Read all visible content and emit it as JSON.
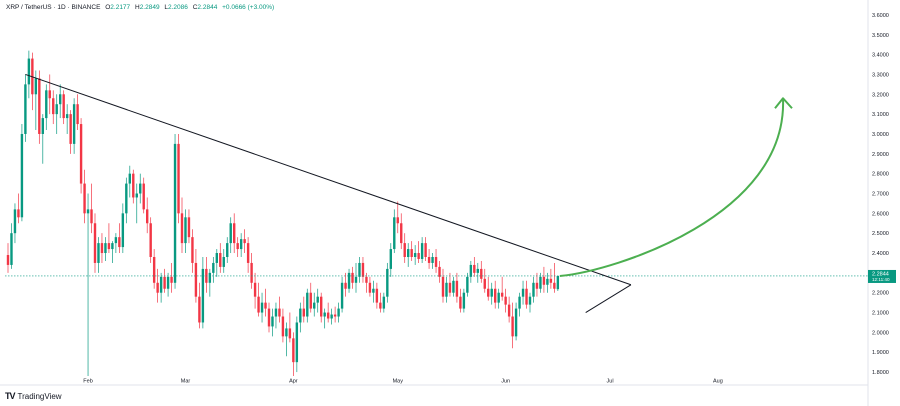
{
  "legend": {
    "symbol": "XRP / TetherUS · 1D · BINANCE",
    "open_label": "O",
    "open": "2.2177",
    "high_label": "H",
    "high": "2.2849",
    "low_label": "L",
    "low": "2.2086",
    "close_label": "C",
    "close": "2.2844",
    "change": "+0.0666 (+3.00%)"
  },
  "chart_data": {
    "type": "candlestick",
    "title": "XRP / TetherUS · 1D · BINANCE",
    "ylim": [
      1.75,
      3.65
    ],
    "y_ticks": [
      "3.6000",
      "3.5000",
      "3.4000",
      "3.3000",
      "3.2000",
      "3.1000",
      "3.0000",
      "2.9000",
      "2.8000",
      "2.7000",
      "2.6000",
      "2.5000",
      "2.4000",
      "2.3000",
      "2.2000",
      "2.1000",
      "2.0000",
      "1.9000",
      "1.8000"
    ],
    "x_ticks": [
      "Feb",
      "Mar",
      "Apr",
      "May",
      "Jun",
      "Jul",
      "Aug"
    ],
    "x_tick_index": [
      23,
      51,
      82,
      112,
      143,
      173,
      204
    ],
    "last_price": "2.2844",
    "last_price_sub": "12:11:40",
    "up_color": "#089981",
    "down_color": "#f23645",
    "candles": [
      [
        2.39,
        2.45,
        2.3,
        2.34
      ],
      [
        2.34,
        2.55,
        2.32,
        2.5
      ],
      [
        2.5,
        2.65,
        2.45,
        2.62
      ],
      [
        2.62,
        2.7,
        2.55,
        2.58
      ],
      [
        2.58,
        3.05,
        2.56,
        3.0
      ],
      [
        3.0,
        3.3,
        2.96,
        3.25
      ],
      [
        3.25,
        3.42,
        3.18,
        3.38
      ],
      [
        3.38,
        3.41,
        3.12,
        3.2
      ],
      [
        3.2,
        3.32,
        3.02,
        3.28
      ],
      [
        3.28,
        3.32,
        2.95,
        3.0
      ],
      [
        3.0,
        3.1,
        2.85,
        3.08
      ],
      [
        3.08,
        3.25,
        3.02,
        3.22
      ],
      [
        3.22,
        3.3,
        3.1,
        3.18
      ],
      [
        3.18,
        3.22,
        3.05,
        3.1
      ],
      [
        3.1,
        3.2,
        3.0,
        3.15
      ],
      [
        3.15,
        3.25,
        3.08,
        3.2
      ],
      [
        3.2,
        3.22,
        3.05,
        3.08
      ],
      [
        3.08,
        3.15,
        3.0,
        3.1
      ],
      [
        3.1,
        3.12,
        2.9,
        2.95
      ],
      [
        2.95,
        3.18,
        2.9,
        3.15
      ],
      [
        3.15,
        3.2,
        3.02,
        3.05
      ],
      [
        3.05,
        3.08,
        2.7,
        2.75
      ],
      [
        2.75,
        2.82,
        2.55,
        2.6
      ],
      [
        2.6,
        2.7,
        1.78,
        2.62
      ],
      [
        2.62,
        2.75,
        2.5,
        2.55
      ],
      [
        2.55,
        2.6,
        2.3,
        2.35
      ],
      [
        2.35,
        2.48,
        2.3,
        2.45
      ],
      [
        2.45,
        2.5,
        2.35,
        2.4
      ],
      [
        2.4,
        2.48,
        2.36,
        2.45
      ],
      [
        2.45,
        2.55,
        2.4,
        2.42
      ],
      [
        2.42,
        2.46,
        2.35,
        2.45
      ],
      [
        2.45,
        2.5,
        2.4,
        2.48
      ],
      [
        2.48,
        2.55,
        2.4,
        2.43
      ],
      [
        2.43,
        2.65,
        2.4,
        2.6
      ],
      [
        2.6,
        2.78,
        2.55,
        2.75
      ],
      [
        2.75,
        2.84,
        2.68,
        2.8
      ],
      [
        2.8,
        2.82,
        2.65,
        2.68
      ],
      [
        2.68,
        2.75,
        2.55,
        2.7
      ],
      [
        2.7,
        2.8,
        2.65,
        2.75
      ],
      [
        2.75,
        2.78,
        2.6,
        2.62
      ],
      [
        2.62,
        2.68,
        2.5,
        2.55
      ],
      [
        2.55,
        2.58,
        2.35,
        2.38
      ],
      [
        2.38,
        2.42,
        2.22,
        2.25
      ],
      [
        2.25,
        2.32,
        2.15,
        2.2
      ],
      [
        2.2,
        2.3,
        2.15,
        2.28
      ],
      [
        2.28,
        2.32,
        2.2,
        2.22
      ],
      [
        2.22,
        2.3,
        2.18,
        2.28
      ],
      [
        2.28,
        2.35,
        2.2,
        2.25
      ],
      [
        2.25,
        3.0,
        2.22,
        2.95
      ],
      [
        2.95,
        3.0,
        2.55,
        2.6
      ],
      [
        2.6,
        2.68,
        2.4,
        2.45
      ],
      [
        2.45,
        2.62,
        2.4,
        2.58
      ],
      [
        2.58,
        2.62,
        2.45,
        2.48
      ],
      [
        2.48,
        2.52,
        2.3,
        2.35
      ],
      [
        2.35,
        2.42,
        2.15,
        2.18
      ],
      [
        2.18,
        2.25,
        2.02,
        2.05
      ],
      [
        2.05,
        2.38,
        2.02,
        2.32
      ],
      [
        2.32,
        2.38,
        2.2,
        2.25
      ],
      [
        2.25,
        2.32,
        2.18,
        2.3
      ],
      [
        2.3,
        2.38,
        2.25,
        2.35
      ],
      [
        2.35,
        2.42,
        2.28,
        2.4
      ],
      [
        2.4,
        2.45,
        2.3,
        2.33
      ],
      [
        2.33,
        2.42,
        2.3,
        2.38
      ],
      [
        2.38,
        2.48,
        2.35,
        2.45
      ],
      [
        2.45,
        2.58,
        2.4,
        2.55
      ],
      [
        2.55,
        2.6,
        2.4,
        2.45
      ],
      [
        2.45,
        2.48,
        2.38,
        2.42
      ],
      [
        2.42,
        2.5,
        2.38,
        2.47
      ],
      [
        2.47,
        2.52,
        2.4,
        2.45
      ],
      [
        2.45,
        2.48,
        2.3,
        2.35
      ],
      [
        2.35,
        2.4,
        2.22,
        2.25
      ],
      [
        2.25,
        2.3,
        2.12,
        2.18
      ],
      [
        2.18,
        2.25,
        2.08,
        2.1
      ],
      [
        2.1,
        2.2,
        2.05,
        2.15
      ],
      [
        2.15,
        2.22,
        2.08,
        2.12
      ],
      [
        2.12,
        2.15,
        2.0,
        2.03
      ],
      [
        2.03,
        2.12,
        1.98,
        2.08
      ],
      [
        2.08,
        2.15,
        2.02,
        2.12
      ],
      [
        2.12,
        2.18,
        2.05,
        2.08
      ],
      [
        2.08,
        2.12,
        1.95,
        1.98
      ],
      [
        1.98,
        2.05,
        1.88,
        2.02
      ],
      [
        2.02,
        2.1,
        1.95,
        1.97
      ],
      [
        1.97,
        2.0,
        1.78,
        1.85
      ],
      [
        1.85,
        2.08,
        1.8,
        2.05
      ],
      [
        2.05,
        2.15,
        2.0,
        2.12
      ],
      [
        2.12,
        2.18,
        2.05,
        2.08
      ],
      [
        2.08,
        2.22,
        2.05,
        2.2
      ],
      [
        2.2,
        2.25,
        2.1,
        2.12
      ],
      [
        2.12,
        2.2,
        2.08,
        2.15
      ],
      [
        2.15,
        2.22,
        2.1,
        2.18
      ],
      [
        2.18,
        2.2,
        2.05,
        2.08
      ],
      [
        2.08,
        2.12,
        2.02,
        2.1
      ],
      [
        2.1,
        2.15,
        2.05,
        2.07
      ],
      [
        2.07,
        2.12,
        2.04,
        2.09
      ],
      [
        2.09,
        2.13,
        2.05,
        2.08
      ],
      [
        2.08,
        2.15,
        2.05,
        2.12
      ],
      [
        2.12,
        2.28,
        2.1,
        2.25
      ],
      [
        2.25,
        2.3,
        2.18,
        2.22
      ],
      [
        2.22,
        2.32,
        2.2,
        2.3
      ],
      [
        2.3,
        2.33,
        2.22,
        2.25
      ],
      [
        2.25,
        2.35,
        2.2,
        2.28
      ],
      [
        2.28,
        2.38,
        2.25,
        2.35
      ],
      [
        2.35,
        2.38,
        2.25,
        2.28
      ],
      [
        2.28,
        2.3,
        2.2,
        2.25
      ],
      [
        2.25,
        2.28,
        2.18,
        2.2
      ],
      [
        2.2,
        2.26,
        2.15,
        2.22
      ],
      [
        2.22,
        2.25,
        2.12,
        2.15
      ],
      [
        2.15,
        2.2,
        2.1,
        2.12
      ],
      [
        2.12,
        2.2,
        2.1,
        2.18
      ],
      [
        2.18,
        2.35,
        2.15,
        2.32
      ],
      [
        2.32,
        2.45,
        2.28,
        2.42
      ],
      [
        2.42,
        2.62,
        2.4,
        2.58
      ],
      [
        2.58,
        2.66,
        2.5,
        2.55
      ],
      [
        2.55,
        2.6,
        2.42,
        2.45
      ],
      [
        2.45,
        2.5,
        2.35,
        2.38
      ],
      [
        2.38,
        2.45,
        2.33,
        2.42
      ],
      [
        2.42,
        2.46,
        2.36,
        2.38
      ],
      [
        2.38,
        2.44,
        2.34,
        2.4
      ],
      [
        2.4,
        2.46,
        2.35,
        2.37
      ],
      [
        2.37,
        2.48,
        2.35,
        2.45
      ],
      [
        2.45,
        2.48,
        2.36,
        2.38
      ],
      [
        2.38,
        2.42,
        2.32,
        2.35
      ],
      [
        2.35,
        2.4,
        2.32,
        2.38
      ],
      [
        2.38,
        2.42,
        2.3,
        2.33
      ],
      [
        2.33,
        2.36,
        2.25,
        2.28
      ],
      [
        2.28,
        2.32,
        2.15,
        2.18
      ],
      [
        2.18,
        2.28,
        2.15,
        2.25
      ],
      [
        2.25,
        2.3,
        2.18,
        2.2
      ],
      [
        2.2,
        2.28,
        2.18,
        2.26
      ],
      [
        2.26,
        2.3,
        2.15,
        2.18
      ],
      [
        2.18,
        2.22,
        2.1,
        2.12
      ],
      [
        2.12,
        2.22,
        2.1,
        2.2
      ],
      [
        2.2,
        2.3,
        2.18,
        2.28
      ],
      [
        2.28,
        2.36,
        2.25,
        2.34
      ],
      [
        2.34,
        2.38,
        2.28,
        2.3
      ],
      [
        2.3,
        2.35,
        2.25,
        2.32
      ],
      [
        2.32,
        2.36,
        2.25,
        2.27
      ],
      [
        2.27,
        2.32,
        2.2,
        2.22
      ],
      [
        2.22,
        2.28,
        2.16,
        2.18
      ],
      [
        2.18,
        2.25,
        2.14,
        2.22
      ],
      [
        2.22,
        2.26,
        2.12,
        2.15
      ],
      [
        2.15,
        2.22,
        2.12,
        2.2
      ],
      [
        2.2,
        2.28,
        2.16,
        2.18
      ],
      [
        2.18,
        2.22,
        2.1,
        2.14
      ],
      [
        2.14,
        2.18,
        2.05,
        2.08
      ],
      [
        2.08,
        2.15,
        1.92,
        1.98
      ],
      [
        1.98,
        2.15,
        1.96,
        2.12
      ],
      [
        2.12,
        2.2,
        2.08,
        2.18
      ],
      [
        2.18,
        2.26,
        2.14,
        2.22
      ],
      [
        2.22,
        2.26,
        2.12,
        2.14
      ],
      [
        2.14,
        2.2,
        2.1,
        2.18
      ],
      [
        2.18,
        2.28,
        2.15,
        2.25
      ],
      [
        2.25,
        2.3,
        2.18,
        2.22
      ],
      [
        2.22,
        2.3,
        2.2,
        2.28
      ],
      [
        2.28,
        2.33,
        2.2,
        2.24
      ],
      [
        2.24,
        2.3,
        2.2,
        2.27
      ],
      [
        2.27,
        2.32,
        2.22,
        2.25
      ],
      [
        2.25,
        2.35,
        2.2,
        2.22
      ],
      [
        2.2177,
        2.2849,
        2.2086,
        2.2844
      ]
    ],
    "resistance_line": [
      [
        5,
        3.3
      ],
      [
        179,
        2.24
      ]
    ],
    "support_line": [
      [
        166,
        2.1
      ],
      [
        179,
        2.24
      ]
    ],
    "projection_arrow_color": "#4caf50",
    "trendline_color": "#131722"
  },
  "branding": {
    "logo_text": "TradingView",
    "logo_mark": "TV"
  }
}
